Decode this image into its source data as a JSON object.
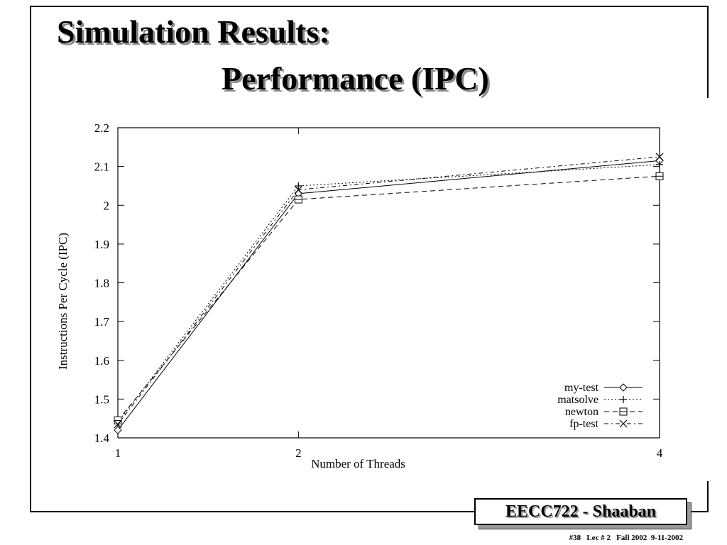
{
  "slide": {
    "title_line1": "Simulation Results:",
    "title_line2": "Performance (IPC)",
    "footer_box": "EECC722 - Shaaban",
    "footnote": "#38   Lec # 2   Fall 2002  9-11-2002"
  },
  "chart_data": {
    "type": "line",
    "title": "",
    "xlabel": "Number of Threads",
    "ylabel": "Instructions Per Cycle (IPC)",
    "x": [
      1,
      2,
      4
    ],
    "x_ticks": [
      "1",
      "2",
      "4"
    ],
    "xlim": [
      1,
      4
    ],
    "y_ticks": [
      "1.4",
      "1.5",
      "1.6",
      "1.7",
      "1.8",
      "1.9",
      "2",
      "2.1",
      "2.2"
    ],
    "ylim": [
      1.4,
      2.2
    ],
    "grid": false,
    "legend_position": "bottom-right",
    "series": [
      {
        "name": "my-test",
        "values": [
          1.42,
          2.03,
          2.115
        ],
        "marker": "diamond",
        "dash": "solid"
      },
      {
        "name": "matsolve",
        "values": [
          1.44,
          2.05,
          2.105
        ],
        "marker": "plus",
        "dash": "dotted"
      },
      {
        "name": "newton",
        "values": [
          1.445,
          2.015,
          2.075
        ],
        "marker": "square",
        "dash": "dashed"
      },
      {
        "name": "fp-test",
        "values": [
          1.435,
          2.04,
          2.125
        ],
        "marker": "cross",
        "dash": "dotdash"
      }
    ]
  }
}
